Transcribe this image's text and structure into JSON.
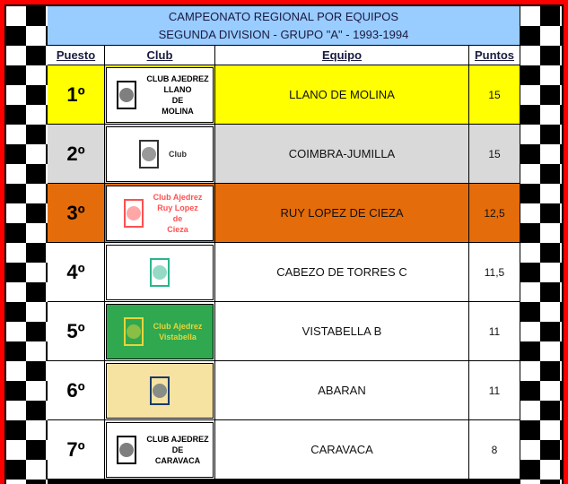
{
  "title": {
    "line1": "CAMPEONATO REGIONAL POR EQUIPOS",
    "line2": "SEGUNDA DIVISION - GRUPO \"A\" - 1993-1994"
  },
  "headers": {
    "puesto": "Puesto",
    "club": "Club",
    "equipo": "Equipo",
    "puntos": "Puntos"
  },
  "colors": {
    "border": "#ff0000",
    "title_bg": "#99ccff",
    "first": "#ffff00",
    "second": "#d9d9d9",
    "third": "#e46c0a",
    "other": "#ffffff"
  },
  "rows": [
    {
      "puesto": "1º",
      "equipo": "LLANO DE MOLINA",
      "puntos": "15",
      "bg": "#ffff00",
      "logo": {
        "text": [
          "CLUB AJEDREZ",
          "LLANO",
          "DE",
          "MOLINA"
        ],
        "icon": "chessboard-diamond-icon",
        "bg": "#ffffff",
        "color": "#000000"
      }
    },
    {
      "puesto": "2º",
      "equipo": "COIMBRA-JUMILLA",
      "puntos": "15",
      "bg": "#d9d9d9",
      "logo": {
        "text": [
          "Club"
        ],
        "icon": "knight-icon",
        "bg": "#ffffff",
        "color": "#333333"
      }
    },
    {
      "puesto": "3º",
      "equipo": "RUY LOPEZ DE CIEZA",
      "puntos": "12,5",
      "bg": "#e46c0a",
      "logo": {
        "text": [
          "Club Ajedrez",
          "Ruy Lopez",
          "de",
          "Cieza"
        ],
        "icon": "tower-icon",
        "bg": "#ffffff",
        "color": "#ff5050"
      }
    },
    {
      "puesto": "4º",
      "equipo": "CABEZO DE TORRES C",
      "puntos": "11,5",
      "bg": "#ffffff",
      "logo": {
        "text": [],
        "icon": "king-chessboard-icon",
        "bg": "#ffffff",
        "color": "#2bb58a"
      }
    },
    {
      "puesto": "5º",
      "equipo": "VISTABELLA B",
      "puntos": "11",
      "bg": "#ffffff",
      "logo": {
        "text": [
          "Club Ajedrez",
          "Vistabella"
        ],
        "icon": "crest-icon",
        "bg": "#2fa84f",
        "color": "#e8d43a"
      }
    },
    {
      "puesto": "6º",
      "equipo": "ABARAN",
      "puntos": "11",
      "bg": "#ffffff",
      "logo": {
        "text": [],
        "icon": "round-emblem-icon",
        "bg": "#f6e3a2",
        "color": "#1a3a6a"
      }
    },
    {
      "puesto": "7º",
      "equipo": "CARAVACA",
      "puntos": "8",
      "bg": "#ffffff",
      "logo": {
        "text": [
          "CLUB AJEDREZ",
          "DE",
          "CARAVACA"
        ],
        "icon": "shield-icon",
        "bg": "#ffffff",
        "color": "#000000"
      }
    }
  ]
}
